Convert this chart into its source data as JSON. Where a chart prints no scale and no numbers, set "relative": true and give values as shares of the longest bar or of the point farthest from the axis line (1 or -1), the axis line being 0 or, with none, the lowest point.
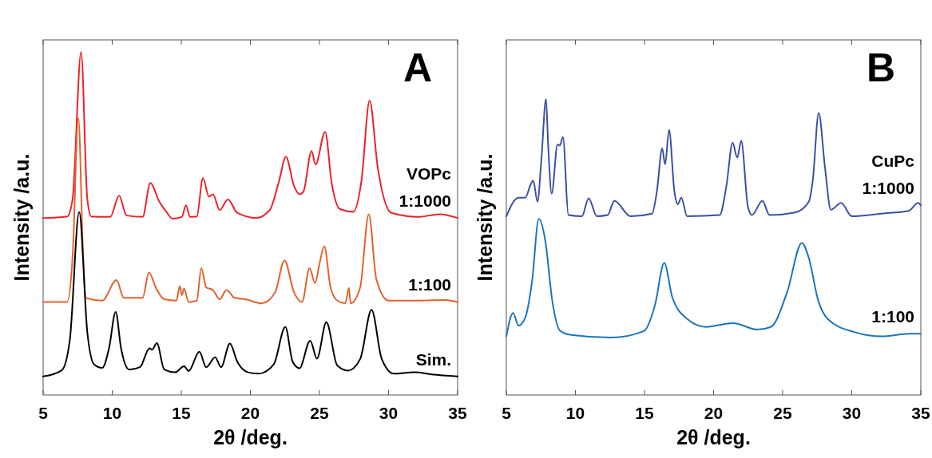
{
  "chart_data": [
    {
      "type": "line",
      "title": "A",
      "xlabel": "2θ /deg.",
      "ylabel": "Intensity /a.u.",
      "relative": true,
      "tick_labels": "x",
      "xlim": [
        5,
        35
      ],
      "xticks": [
        5,
        10,
        15,
        20,
        25,
        30,
        35
      ],
      "series": [
        {
          "name": "VOPc 1:1000",
          "color": "#ec2227",
          "x": [
            5.0,
            6.74,
            7.13,
            7.75,
            8.2,
            8.5,
            9.86,
            10.5,
            11.04,
            12.2,
            12.76,
            13.38,
            13.97,
            14.36,
            15.04,
            15.34,
            15.63,
            16.12,
            16.57,
            17.0,
            17.29,
            17.78,
            18.37,
            19.05,
            20.42,
            21.4,
            22.08,
            22.57,
            23.16,
            23.55,
            23.84,
            24.43,
            24.72,
            25.41,
            25.89,
            26.48,
            27.46,
            28.04,
            28.63,
            29.22,
            30.2,
            32.15,
            33.71,
            35.0
          ],
          "values": [
            0.516,
            0.52,
            0.57,
            1.0,
            0.57,
            0.52,
            0.519,
            0.581,
            0.523,
            0.519,
            0.618,
            0.566,
            0.531,
            0.514,
            0.519,
            0.553,
            0.519,
            0.52,
            0.632,
            0.578,
            0.585,
            0.539,
            0.57,
            0.531,
            0.516,
            0.539,
            0.624,
            0.694,
            0.609,
            0.585,
            0.593,
            0.711,
            0.672,
            0.767,
            0.616,
            0.542,
            0.534,
            0.624,
            0.858,
            0.663,
            0.531,
            0.519,
            0.527,
            0.516
          ]
        },
        {
          "name": "1:100",
          "color": "#e2622c",
          "x": [
            5.0,
            6.74,
            7.13,
            7.55,
            7.9,
            8.1,
            9.28,
            10.31,
            10.84,
            12.2,
            12.66,
            13.19,
            13.77,
            14.65,
            14.89,
            15.04,
            15.2,
            15.53,
            16.12,
            16.45,
            16.8,
            17.29,
            17.78,
            18.27,
            18.86,
            19.64,
            20.81,
            21.79,
            22.47,
            23.16,
            23.74,
            24.29,
            24.68,
            25.01,
            25.35,
            25.8,
            26.29,
            26.87,
            27.13,
            27.26,
            27.95,
            28.57,
            29.12,
            30.0,
            32.15,
            34.1,
            35.0
          ],
          "values": [
            0.271,
            0.271,
            0.4,
            0.807,
            0.4,
            0.283,
            0.275,
            0.335,
            0.283,
            0.283,
            0.357,
            0.31,
            0.279,
            0.275,
            0.318,
            0.291,
            0.31,
            0.271,
            0.275,
            0.37,
            0.314,
            0.306,
            0.279,
            0.306,
            0.283,
            0.279,
            0.267,
            0.299,
            0.392,
            0.299,
            0.271,
            0.37,
            0.326,
            0.384,
            0.434,
            0.314,
            0.275,
            0.267,
            0.312,
            0.267,
            0.314,
            0.527,
            0.337,
            0.275,
            0.275,
            0.277,
            0.271
          ]
        },
        {
          "name": "Sim.",
          "color": "#000000",
          "x": [
            5.0,
            6.35,
            6.93,
            7.61,
            8.2,
            8.69,
            9.28,
            9.77,
            10.25,
            10.64,
            11.23,
            12.01,
            12.7,
            12.89,
            13.23,
            13.77,
            14.56,
            15.2,
            15.53,
            16.31,
            16.8,
            17.45,
            17.88,
            18.52,
            19.05,
            19.83,
            20.62,
            21.69,
            22.53,
            23.06,
            23.55,
            24.33,
            24.82,
            25.5,
            26.29,
            27.07,
            27.95,
            28.77,
            29.51,
            30.39,
            31.86,
            33.13,
            35.0
          ],
          "values": [
            0.054,
            0.072,
            0.159,
            0.533,
            0.182,
            0.089,
            0.079,
            0.136,
            0.242,
            0.136,
            0.074,
            0.081,
            0.136,
            0.132,
            0.151,
            0.074,
            0.066,
            0.084,
            0.07,
            0.126,
            0.081,
            0.11,
            0.081,
            0.15,
            0.097,
            0.066,
            0.062,
            0.089,
            0.198,
            0.097,
            0.078,
            0.158,
            0.106,
            0.212,
            0.086,
            0.071,
            0.105,
            0.248,
            0.105,
            0.062,
            0.066,
            0.06,
            0.054
          ]
        }
      ]
    },
    {
      "type": "line",
      "title": "B",
      "xlabel": "2θ /deg.",
      "ylabel": "Intensity /a.u.",
      "relative": true,
      "tick_labels": "x",
      "xlim": [
        5,
        35
      ],
      "xticks": [
        5,
        10,
        15,
        20,
        25,
        30,
        35
      ],
      "series": [
        {
          "name": "CuPc 1:1000",
          "color": "#3a50a4",
          "x": [
            5.0,
            5.88,
            6.37,
            6.76,
            6.95,
            7.25,
            7.54,
            7.87,
            8.03,
            8.28,
            8.71,
            8.87,
            9.1,
            9.49,
            10.47,
            10.96,
            11.55,
            12.33,
            12.82,
            13.99,
            15.55,
            15.9,
            16.28,
            16.49,
            16.78,
            17.16,
            17.41,
            17.66,
            18.09,
            20.44,
            20.93,
            21.38,
            21.71,
            22.0,
            22.49,
            22.78,
            23.53,
            24.05,
            25.91,
            26.89,
            27.18,
            27.61,
            28.06,
            28.49,
            29.23,
            30.01,
            32.16,
            34.12,
            34.8,
            35.0
          ],
          "values": [
            0.604,
            0.667,
            0.667,
            0.711,
            0.725,
            0.653,
            0.797,
            1.0,
            0.843,
            0.68,
            0.847,
            0.843,
            0.871,
            0.608,
            0.604,
            0.665,
            0.604,
            0.608,
            0.656,
            0.604,
            0.613,
            0.689,
            0.833,
            0.779,
            0.896,
            0.689,
            0.644,
            0.667,
            0.604,
            0.608,
            0.707,
            0.853,
            0.802,
            0.859,
            0.635,
            0.608,
            0.656,
            0.608,
            0.617,
            0.653,
            0.725,
            0.953,
            0.77,
            0.626,
            0.649,
            0.604,
            0.613,
            0.622,
            0.649,
            0.641
          ]
        },
        {
          "name": "1:100",
          "color": "#1a75bc",
          "x": [
            5.0,
            5.49,
            5.88,
            6.37,
            6.86,
            7.35,
            7.83,
            8.32,
            8.91,
            9.69,
            12.62,
            14.96,
            15.75,
            16.43,
            17.02,
            18.09,
            19.46,
            21.42,
            23.17,
            24.15,
            25.32,
            26.39,
            26.89,
            27.57,
            28.26,
            30.21,
            32.16,
            34.12,
            35.0
          ],
          "values": [
            0.198,
            0.277,
            0.234,
            0.261,
            0.383,
            0.595,
            0.518,
            0.32,
            0.216,
            0.203,
            0.194,
            0.216,
            0.302,
            0.446,
            0.329,
            0.257,
            0.23,
            0.243,
            0.221,
            0.23,
            0.347,
            0.514,
            0.464,
            0.32,
            0.257,
            0.212,
            0.198,
            0.207,
            0.207
          ]
        }
      ]
    }
  ]
}
